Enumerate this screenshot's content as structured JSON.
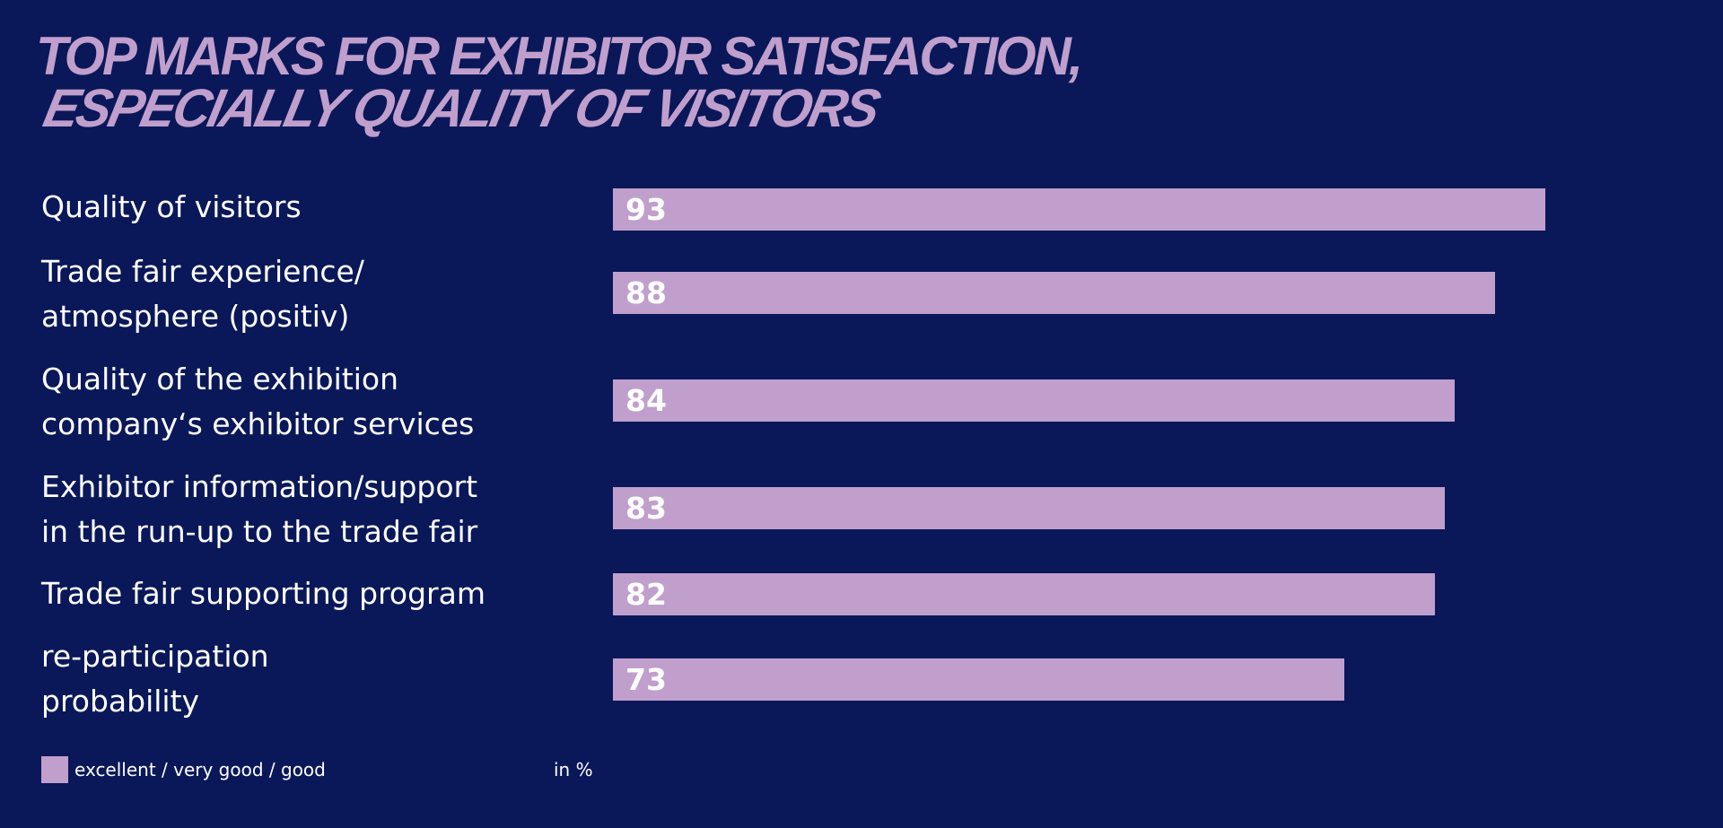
{
  "colors": {
    "background": "#0a185a",
    "bar": "#c09fcc",
    "title": "#c09fcc",
    "text": "#ffffff"
  },
  "title_line1": "TOP MARKS FOR EXHIBITOR SATISFACTION,",
  "title_line2": "ESPECIALLY QUALITY OF VISITORS",
  "chart_data": {
    "type": "bar",
    "orientation": "horizontal",
    "categories": [
      "Quality of visitors",
      "Trade fair experience/\natmosphere  (positiv)",
      "Quality of the exhibition\ncompany‘s exhibitor services",
      "Exhibitor information/support\nin the run-up to the trade fair",
      "Trade fair supporting program",
      "re-participation\nprobability"
    ],
    "series": [
      {
        "name": "excellent / very good / good",
        "values": [
          93,
          88,
          84,
          83,
          82,
          73
        ]
      }
    ],
    "unit_label": "in %",
    "xlim": [
      0,
      100
    ],
    "grid": false,
    "legend_position": "bottom-left",
    "data_labels": true
  }
}
